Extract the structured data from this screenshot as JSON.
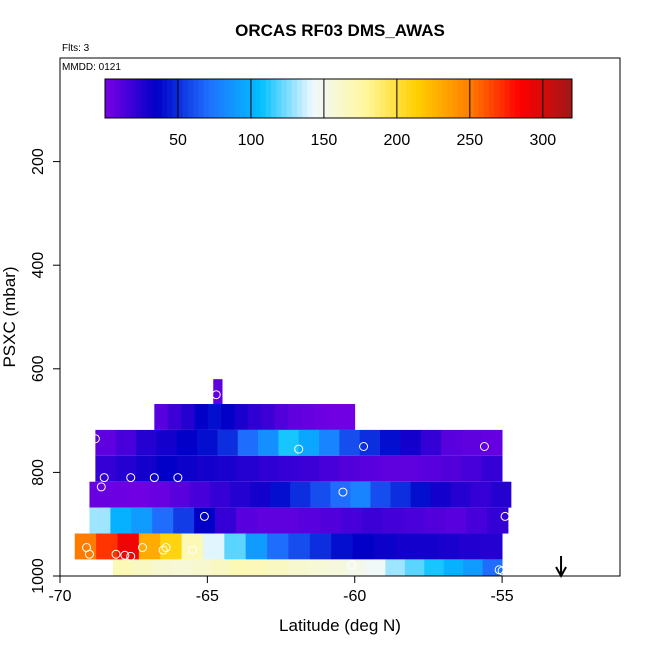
{
  "chart_data": {
    "type": "heatmap",
    "title": "ORCAS RF03 DMS_AWAS",
    "xlabel": "Latitude (deg N)",
    "ylabel": "PSXC (mbar)",
    "flights_note": "Flts: 3",
    "date_note": "MMDD: 0121",
    "xlim": [
      -70,
      -51
    ],
    "ylim": [
      1000,
      0
    ],
    "x_ticks": [
      -70,
      -65,
      -60,
      -55
    ],
    "y_ticks": [
      200,
      400,
      600,
      800,
      1000
    ],
    "colorbar": {
      "range": [
        0,
        320
      ],
      "ticks": [
        50,
        100,
        150,
        200,
        250,
        300
      ],
      "colors": [
        "#7a00e6",
        "#0000c8",
        "#2070ff",
        "#00c0ff",
        "#f0f8ff",
        "#fff8a0",
        "#ffd000",
        "#ff8000",
        "#ff0000",
        "#a01818"
      ]
    },
    "arrow_marker_lat": -53,
    "rows": [
      {
        "p_top": 620,
        "p_bot": 668,
        "x0": -64.8,
        "x1": -64.5,
        "values": [
          8
        ]
      },
      {
        "p_top": 668,
        "p_bot": 718,
        "x0": -66.8,
        "x1": -60.0,
        "values": [
          10,
          18,
          25,
          35,
          40,
          35,
          28,
          22,
          18,
          12,
          8,
          6,
          4,
          3,
          3
        ]
      },
      {
        "p_top": 718,
        "p_bot": 768,
        "x0": -68.8,
        "x1": -55.0,
        "values": [
          8,
          15,
          25,
          30,
          35,
          40,
          50,
          70,
          85,
          110,
          95,
          80,
          60,
          50,
          40,
          30,
          20,
          10,
          8,
          6
        ]
      },
      {
        "p_top": 768,
        "p_bot": 818,
        "x0": -68.8,
        "x1": -55.0,
        "values": [
          20,
          25,
          30,
          35,
          32,
          30,
          28,
          25,
          22,
          20,
          18,
          15,
          12,
          10,
          8,
          8,
          10,
          12,
          15,
          20
        ]
      },
      {
        "p_top": 818,
        "p_bot": 868,
        "x0": -69.0,
        "x1": -54.7,
        "values": [
          5,
          4,
          3,
          5,
          10,
          15,
          20,
          25,
          30,
          40,
          50,
          60,
          70,
          80,
          60,
          50,
          40,
          30,
          25,
          20,
          25
        ]
      },
      {
        "p_top": 868,
        "p_bot": 918,
        "x0": -69.0,
        "x1": -54.8,
        "values": [
          130,
          100,
          90,
          70,
          55,
          35,
          20,
          10,
          8,
          8,
          10,
          12,
          15,
          18,
          16,
          14,
          12,
          10,
          15,
          20
        ]
      },
      {
        "p_top": 918,
        "p_bot": 968,
        "x0": -69.5,
        "x1": -55.0,
        "values": [
          250,
          270,
          290,
          230,
          210,
          170,
          140,
          120,
          90,
          70,
          60,
          50,
          40,
          35,
          32,
          30,
          30,
          28,
          26,
          25
        ]
      },
      {
        "p_top": 968,
        "p_bot": 1008,
        "x0": -68.2,
        "x1": -55.0,
        "values": [
          170,
          165,
          160,
          158,
          160,
          165,
          170,
          168,
          165,
          160,
          158,
          155,
          150,
          145,
          130,
          120,
          110,
          100,
          90,
          70
        ]
      }
    ],
    "points": [
      {
        "lat": -64.7,
        "p": 650
      },
      {
        "lat": -68.8,
        "p": 735
      },
      {
        "lat": -61.9,
        "p": 755
      },
      {
        "lat": -59.7,
        "p": 750
      },
      {
        "lat": -55.6,
        "p": 750
      },
      {
        "lat": -68.5,
        "p": 810
      },
      {
        "lat": -68.6,
        "p": 828
      },
      {
        "lat": -67.6,
        "p": 810
      },
      {
        "lat": -66.8,
        "p": 810
      },
      {
        "lat": -66.0,
        "p": 810
      },
      {
        "lat": -60.4,
        "p": 838
      },
      {
        "lat": -65.1,
        "p": 885
      },
      {
        "lat": -54.9,
        "p": 885
      },
      {
        "lat": -69.1,
        "p": 945
      },
      {
        "lat": -67.2,
        "p": 945
      },
      {
        "lat": -66.4,
        "p": 945
      },
      {
        "lat": -66.5,
        "p": 950
      },
      {
        "lat": -65.5,
        "p": 950
      },
      {
        "lat": -69.0,
        "p": 958
      },
      {
        "lat": -68.1,
        "p": 958
      },
      {
        "lat": -67.8,
        "p": 960
      },
      {
        "lat": -67.6,
        "p": 962
      },
      {
        "lat": -60.1,
        "p": 978
      },
      {
        "lat": -55.1,
        "p": 988
      },
      {
        "lat": -55.0,
        "p": 990
      }
    ]
  }
}
